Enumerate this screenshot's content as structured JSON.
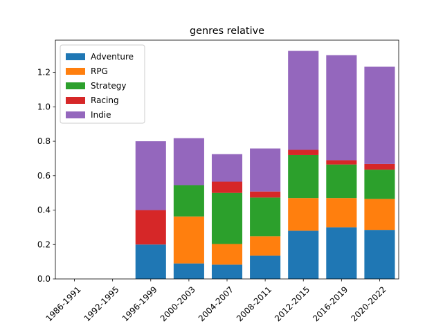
{
  "chart_data": {
    "type": "bar",
    "stacked": true,
    "title": "genres relative",
    "xlabel": "",
    "ylabel": "",
    "ylim": [
      0,
      1.3875
    ],
    "yticks": [
      "0.0",
      "0.2",
      "0.4",
      "0.6",
      "0.8",
      "1.0",
      "1.2"
    ],
    "categories": [
      "1986-1991",
      "1992-1995",
      "1996-1999",
      "2000-2003",
      "2004-2007",
      "2008-2011",
      "2012-2015",
      "2016-2019",
      "2020-2022"
    ],
    "legend_position": "top-left",
    "grid": false,
    "series": [
      {
        "name": "Adventure",
        "color": "#1f77b4",
        "values": [
          0,
          0,
          0.2,
          0.09,
          0.083,
          0.135,
          0.28,
          0.3,
          0.285
        ]
      },
      {
        "name": "RPG",
        "color": "#ff7f0e",
        "values": [
          0,
          0,
          0,
          0.273,
          0.12,
          0.113,
          0.19,
          0.17,
          0.18
        ]
      },
      {
        "name": "Strategy",
        "color": "#2ca02c",
        "values": [
          0,
          0,
          0,
          0.182,
          0.297,
          0.225,
          0.25,
          0.195,
          0.17
        ]
      },
      {
        "name": "Racing",
        "color": "#d62728",
        "values": [
          0,
          0,
          0.2,
          0,
          0.065,
          0.035,
          0.03,
          0.025,
          0.033
        ]
      },
      {
        "name": "Indie",
        "color": "#9467bd",
        "values": [
          0,
          0,
          0.4,
          0.273,
          0.16,
          0.25,
          0.575,
          0.61,
          0.565
        ]
      }
    ]
  }
}
